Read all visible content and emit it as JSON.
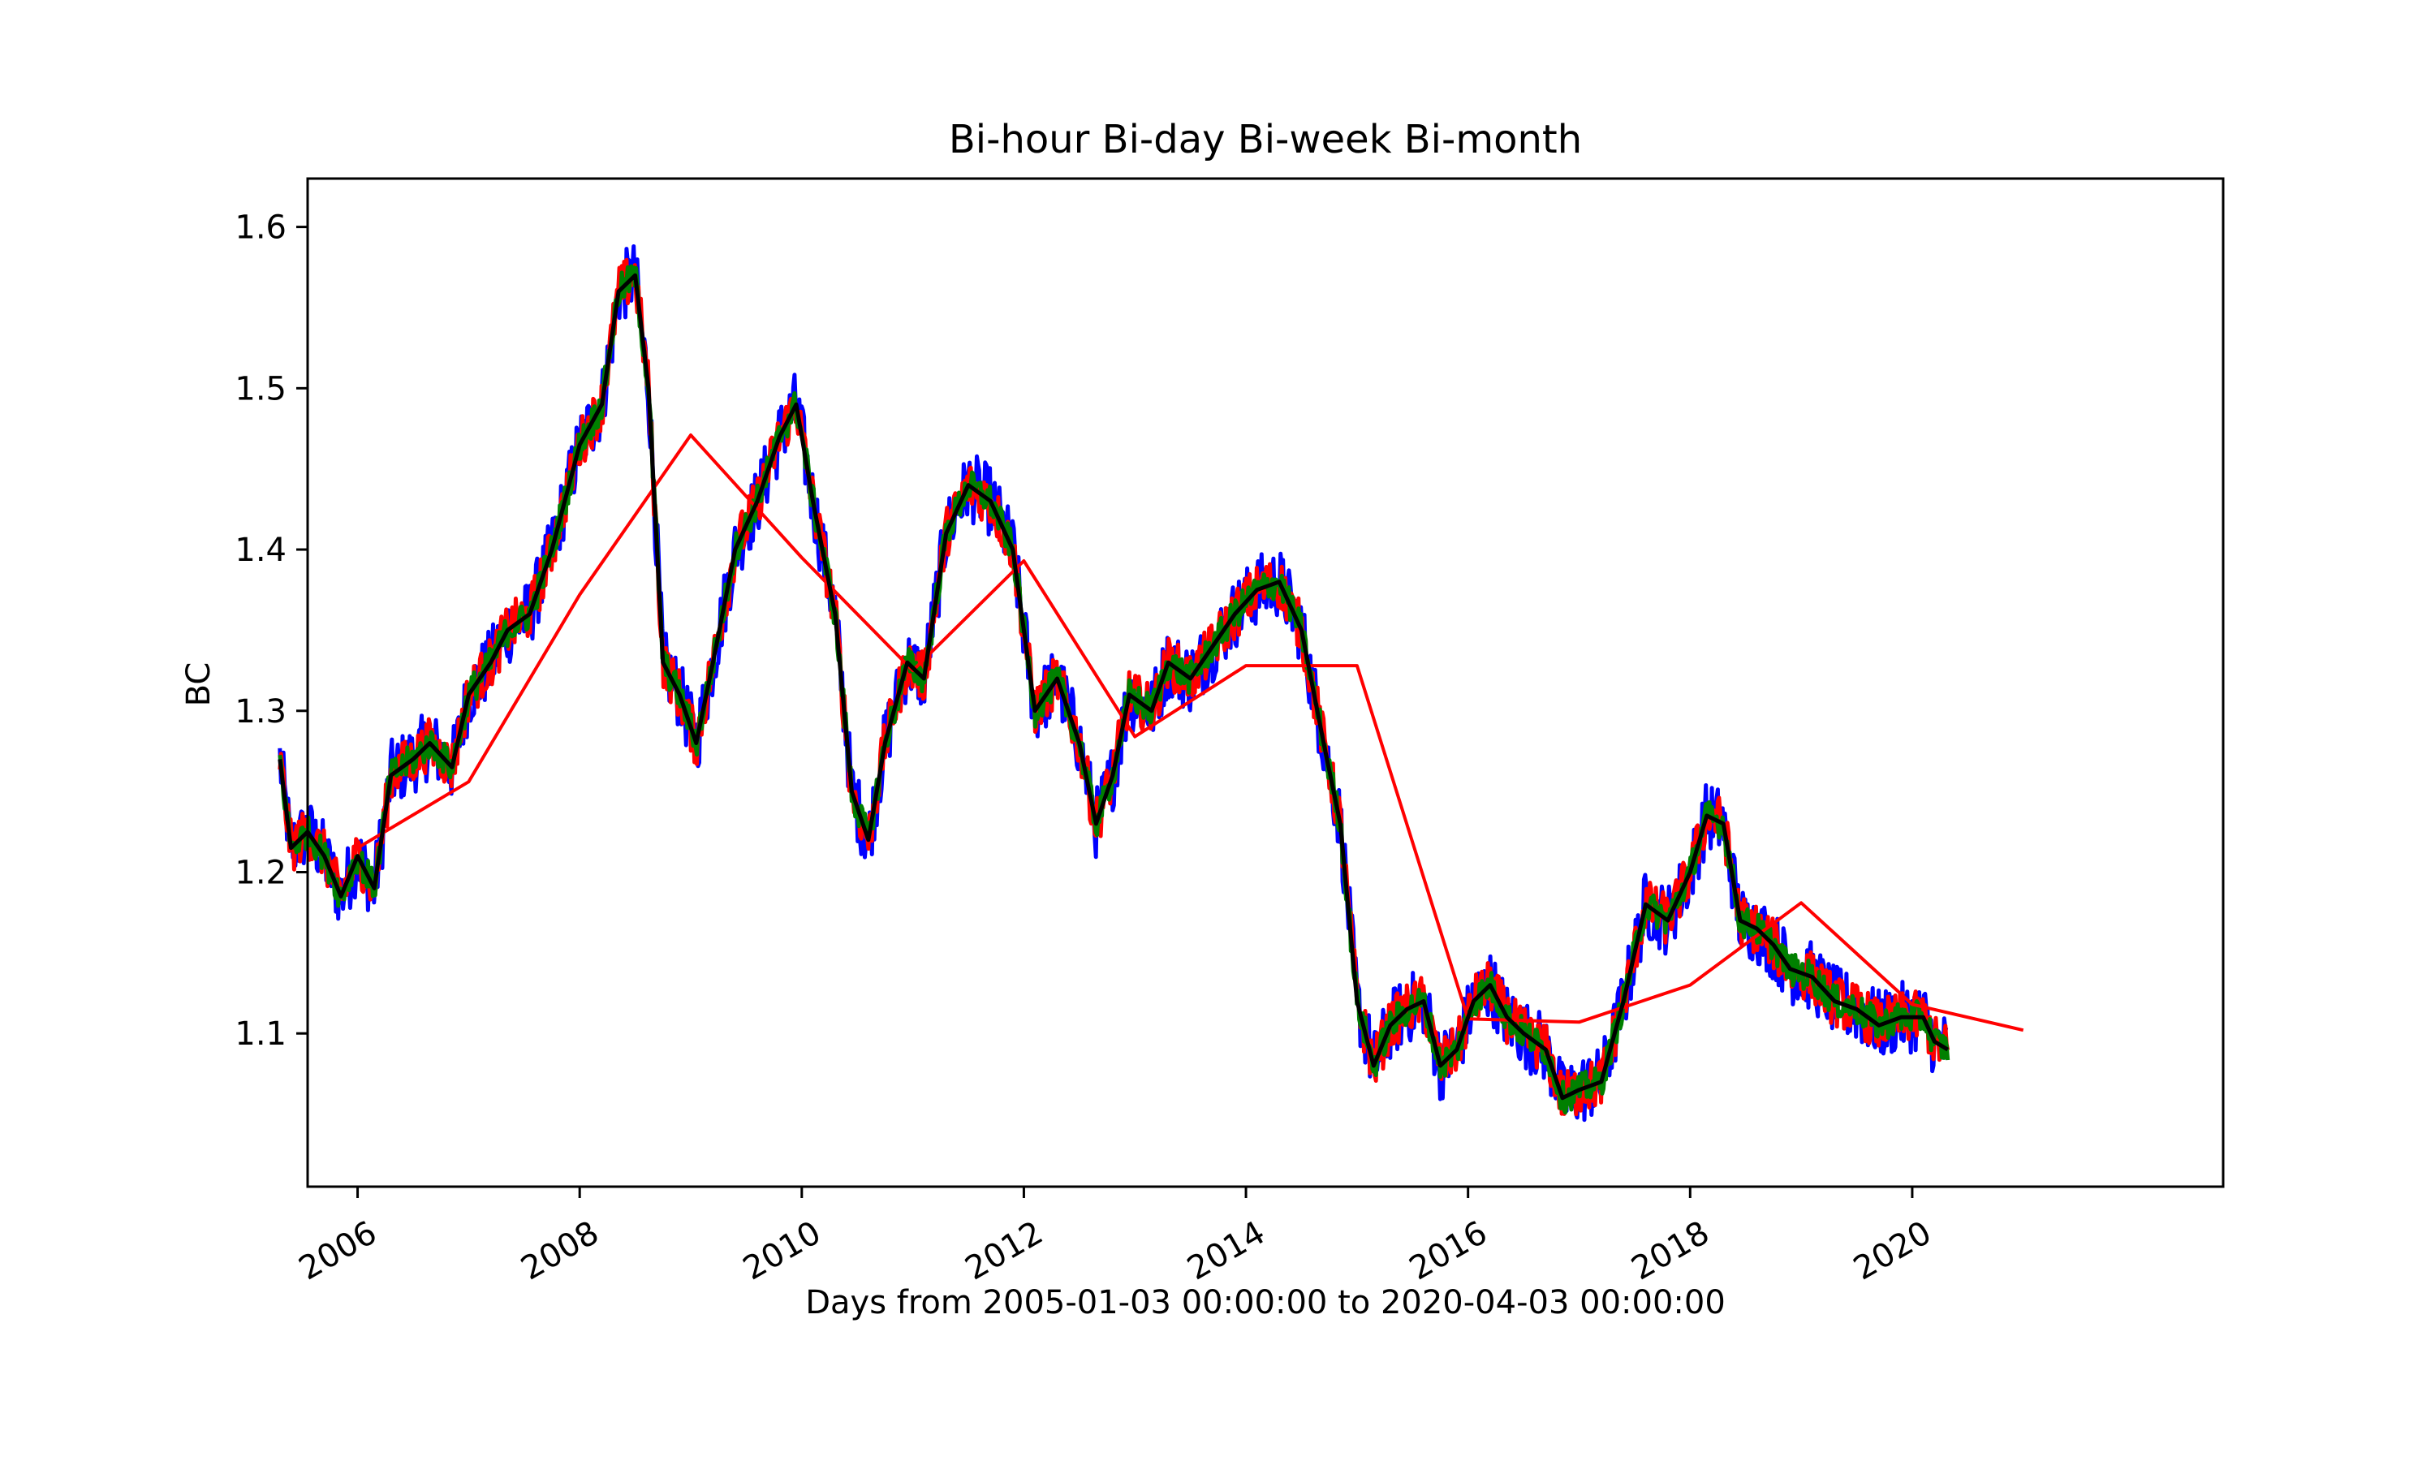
{
  "chart_data": {
    "type": "line",
    "title": "Bi-hour Bi-day Bi-week Bi-month",
    "xlabel": "Days from 2005-01-03 00:00:00 to 2020-04-03 00:00:00",
    "ylabel": "BC",
    "xlim": [
      2005.55,
      2022.8
    ],
    "ylim": [
      1.005,
      1.63
    ],
    "x_ticks": [
      2006,
      2008,
      2010,
      2012,
      2014,
      2016,
      2018,
      2020
    ],
    "x_tick_labels": [
      "2006",
      "2008",
      "2010",
      "2012",
      "2014",
      "2016",
      "2018",
      "2020"
    ],
    "y_ticks": [
      1.1,
      1.2,
      1.3,
      1.4,
      1.5,
      1.6
    ],
    "y_tick_labels": [
      "1.1",
      "1.2",
      "1.3",
      "1.4",
      "1.5",
      "1.6"
    ],
    "grid": false,
    "legend": "none",
    "noisy_series": [
      {
        "color": "#0000ff",
        "width": 5,
        "amp": 0.022
      },
      {
        "color": "#ff0000",
        "width": 5,
        "amp": 0.016
      },
      {
        "color": "#008000",
        "width": 5,
        "amp": 0.01
      }
    ],
    "series": [
      {
        "color": "#000000",
        "width": 5,
        "x": [
          2005.3,
          2005.4,
          2005.55,
          2005.7,
          2005.85,
          2006.0,
          2006.15,
          2006.3,
          2006.5,
          2006.65,
          2006.85,
          2007.0,
          2007.2,
          2007.35,
          2007.55,
          2007.75,
          2008.0,
          2008.2,
          2008.35,
          2008.5,
          2008.62,
          2008.75,
          2008.9,
          2009.05,
          2009.2,
          2009.4,
          2009.6,
          2009.8,
          2009.95,
          2010.1,
          2010.3,
          2010.45,
          2010.6,
          2010.75,
          2010.95,
          2011.1,
          2011.3,
          2011.5,
          2011.7,
          2011.9,
          2012.1,
          2012.3,
          2012.5,
          2012.65,
          2012.8,
          2012.95,
          2013.15,
          2013.3,
          2013.5,
          2013.7,
          2013.9,
          2014.1,
          2014.3,
          2014.5,
          2014.7,
          2014.85,
          2015.0,
          2015.15,
          2015.3,
          2015.45,
          2015.6,
          2015.75,
          2015.9,
          2016.05,
          2016.2,
          2016.35,
          2016.5,
          2016.7,
          2016.85,
          2017.0,
          2017.2,
          2017.4,
          2017.6,
          2017.8,
          2018.0,
          2018.15,
          2018.3,
          2018.45,
          2018.6,
          2018.75,
          2018.9,
          2019.1,
          2019.3,
          2019.5,
          2019.7,
          2019.9,
          2020.1,
          2020.2,
          2020.32
        ],
        "values": [
          1.27,
          1.215,
          1.225,
          1.21,
          1.185,
          1.21,
          1.19,
          1.26,
          1.27,
          1.28,
          1.265,
          1.31,
          1.33,
          1.35,
          1.36,
          1.4,
          1.465,
          1.49,
          1.56,
          1.57,
          1.5,
          1.33,
          1.31,
          1.28,
          1.33,
          1.4,
          1.43,
          1.47,
          1.49,
          1.43,
          1.36,
          1.25,
          1.22,
          1.28,
          1.33,
          1.32,
          1.41,
          1.44,
          1.43,
          1.4,
          1.3,
          1.32,
          1.28,
          1.23,
          1.26,
          1.31,
          1.3,
          1.33,
          1.32,
          1.34,
          1.36,
          1.375,
          1.38,
          1.35,
          1.28,
          1.23,
          1.12,
          1.08,
          1.105,
          1.115,
          1.12,
          1.08,
          1.09,
          1.12,
          1.13,
          1.11,
          1.1,
          1.09,
          1.06,
          1.065,
          1.07,
          1.12,
          1.18,
          1.17,
          1.2,
          1.235,
          1.23,
          1.17,
          1.165,
          1.155,
          1.14,
          1.135,
          1.12,
          1.115,
          1.105,
          1.11,
          1.11,
          1.095,
          1.09
        ]
      },
      {
        "color": "#ff0000",
        "width": 4,
        "x": [
          2006.0,
          2007.0,
          2008.0,
          2009.0,
          2010.0,
          2011.0,
          2012.0,
          2013.0,
          2014.0,
          2015.0,
          2016.0,
          2017.0,
          2018.0,
          2019.0,
          2020.0,
          2021.0
        ],
        "values": [
          1.215,
          1.256,
          1.372,
          1.471,
          1.395,
          1.325,
          1.393,
          1.284,
          1.328,
          1.328,
          1.109,
          1.107,
          1.13,
          1.181,
          1.118,
          1.102
        ]
      }
    ]
  }
}
